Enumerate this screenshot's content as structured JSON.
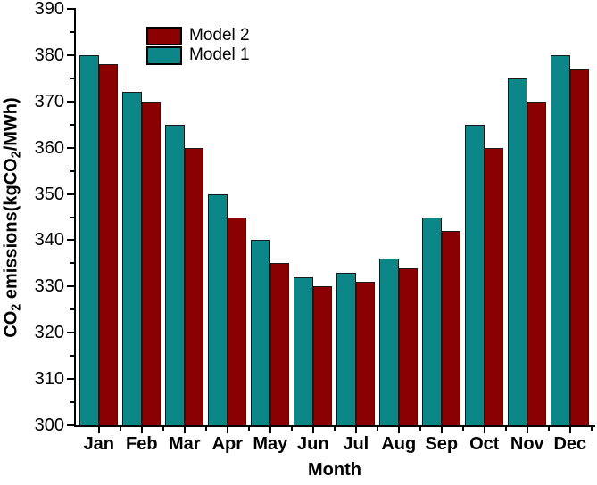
{
  "figure": {
    "ylabel_parts": [
      "CO",
      "2",
      " emissions(kgCO",
      "2",
      "/MWh)"
    ],
    "xlabel": "Month"
  },
  "legend": {
    "items": [
      {
        "label": "Model 2",
        "color": "#8B0000"
      },
      {
        "label": "Model 1",
        "color": "#0C8686"
      }
    ]
  },
  "chart_data": {
    "type": "bar",
    "title": "",
    "xlabel": "Month",
    "ylabel": "CO2 emissions(kgCO2/MWh)",
    "categories": [
      "Jan",
      "Feb",
      "Mar",
      "Apr",
      "May",
      "Jun",
      "Jul",
      "Aug",
      "Sep",
      "Oct",
      "Nov",
      "Dec"
    ],
    "series": [
      {
        "name": "Model 1",
        "color": "#0C8686",
        "values": [
          380,
          372,
          365,
          350,
          340,
          332,
          333,
          336,
          345,
          365,
          375,
          380
        ]
      },
      {
        "name": "Model 2",
        "color": "#8B0000",
        "values": [
          378,
          370,
          360,
          345,
          335,
          330,
          331,
          334,
          342,
          360,
          370,
          377
        ]
      }
    ],
    "bar_left_series": "Model 1",
    "bar_outline": "#1a1a1a",
    "ylim": [
      300,
      390
    ],
    "yticks": [
      300,
      310,
      320,
      330,
      340,
      350,
      360,
      370,
      380,
      390
    ],
    "ytick_minor_step": 5,
    "grid": false,
    "legend_order": [
      "Model 2",
      "Model 1"
    ],
    "legend_position": "top-inner-left"
  }
}
